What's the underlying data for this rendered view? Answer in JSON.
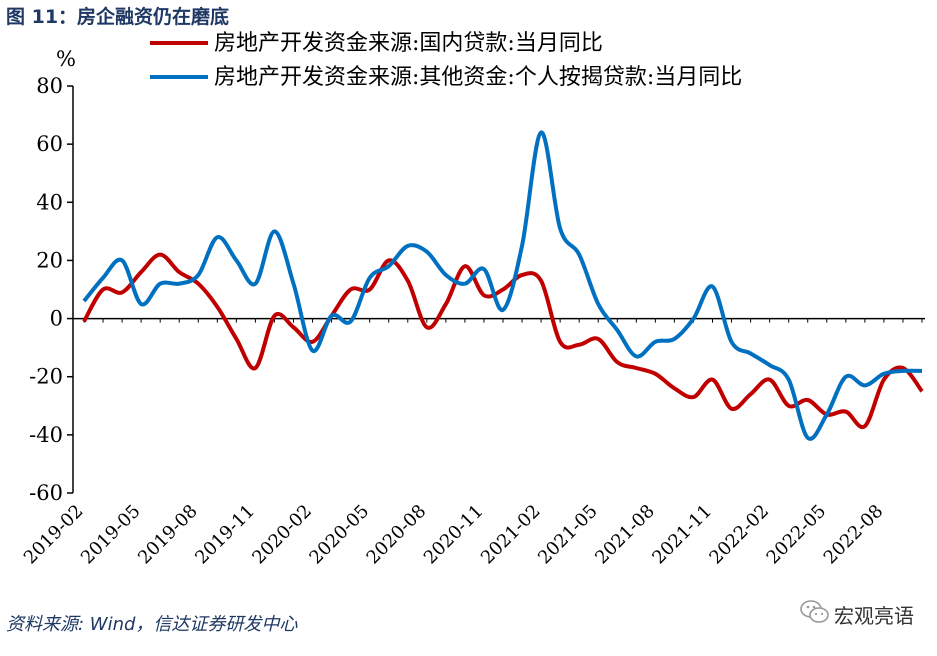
{
  "figure_title": "图 11：房企融资仍在磨底",
  "source": "资料来源: Wind，信达证券研发中心",
  "watermark": {
    "text": "宏观亮语",
    "icon": "wechat-icon"
  },
  "chart_data": {
    "type": "line",
    "ylabel": "%",
    "ylim": [
      -60,
      80
    ],
    "yticks": [
      80,
      60,
      40,
      20,
      0,
      -20,
      -40,
      -60
    ],
    "xticks": [
      "2019-02",
      "2019-05",
      "2019-08",
      "2019-11",
      "2020-02",
      "2020-05",
      "2020-08",
      "2020-11",
      "2021-02",
      "2021-05",
      "2021-08",
      "2021-11",
      "2022-02",
      "2022-05",
      "2022-08"
    ],
    "legend_position": "top",
    "grid": false,
    "series": [
      {
        "name": "房地产开发资金来源:国内贷款:当月同比",
        "color": "#c00000",
        "x": [
          "2019-02",
          "2019-03",
          "2019-04",
          "2019-05",
          "2019-06",
          "2019-07",
          "2019-08",
          "2019-09",
          "2019-10",
          "2019-11",
          "2019-12",
          "2020-01",
          "2020-02",
          "2020-03",
          "2020-04",
          "2020-05",
          "2020-06",
          "2020-07",
          "2020-08",
          "2020-09",
          "2020-10",
          "2020-11",
          "2020-12",
          "2021-01",
          "2021-02",
          "2021-03",
          "2021-04",
          "2021-05",
          "2021-06",
          "2021-07",
          "2021-08",
          "2021-09",
          "2021-10",
          "2021-11",
          "2021-12",
          "2022-01",
          "2022-02",
          "2022-03",
          "2022-04",
          "2022-05",
          "2022-06",
          "2022-07",
          "2022-08",
          "2022-09",
          "2022-10"
        ],
        "values": [
          -1,
          10,
          9,
          16,
          22,
          16,
          12,
          4,
          -7,
          -17,
          1,
          -3,
          -8,
          1,
          10,
          10,
          20,
          13,
          -3,
          5,
          18,
          8,
          10,
          15,
          13,
          -8,
          -9,
          -7,
          -15,
          -17,
          -19,
          -24,
          -27,
          -21,
          -31,
          -26,
          -21,
          -30,
          -28,
          -33,
          -32,
          -37,
          -21,
          -17,
          -25
        ]
      },
      {
        "name": "房地产开发资金来源:其他资金:个人按揭贷款:当月同比",
        "color": "#0070c0",
        "x": [
          "2019-02",
          "2019-03",
          "2019-04",
          "2019-05",
          "2019-06",
          "2019-07",
          "2019-08",
          "2019-09",
          "2019-10",
          "2019-11",
          "2019-12",
          "2020-01",
          "2020-02",
          "2020-03",
          "2020-04",
          "2020-05",
          "2020-06",
          "2020-07",
          "2020-08",
          "2020-09",
          "2020-10",
          "2020-11",
          "2020-12",
          "2021-01",
          "2021-02",
          "2021-03",
          "2021-04",
          "2021-05",
          "2021-06",
          "2021-07",
          "2021-08",
          "2021-09",
          "2021-10",
          "2021-11",
          "2021-12",
          "2022-01",
          "2022-02",
          "2022-03",
          "2022-04",
          "2022-05",
          "2022-06",
          "2022-07",
          "2022-08",
          "2022-09",
          "2022-10"
        ],
        "values": [
          6,
          14,
          20,
          5,
          12,
          12,
          15,
          28,
          20,
          12,
          30,
          12,
          -11,
          1,
          -1,
          14,
          18,
          25,
          23,
          15,
          12,
          17,
          3,
          25,
          64,
          31,
          22,
          5,
          -4,
          -13,
          -8,
          -7,
          0,
          11,
          -8,
          -12,
          -16,
          -21,
          -41,
          -33,
          -20,
          -23,
          -19,
          -18,
          -18
        ]
      }
    ]
  }
}
